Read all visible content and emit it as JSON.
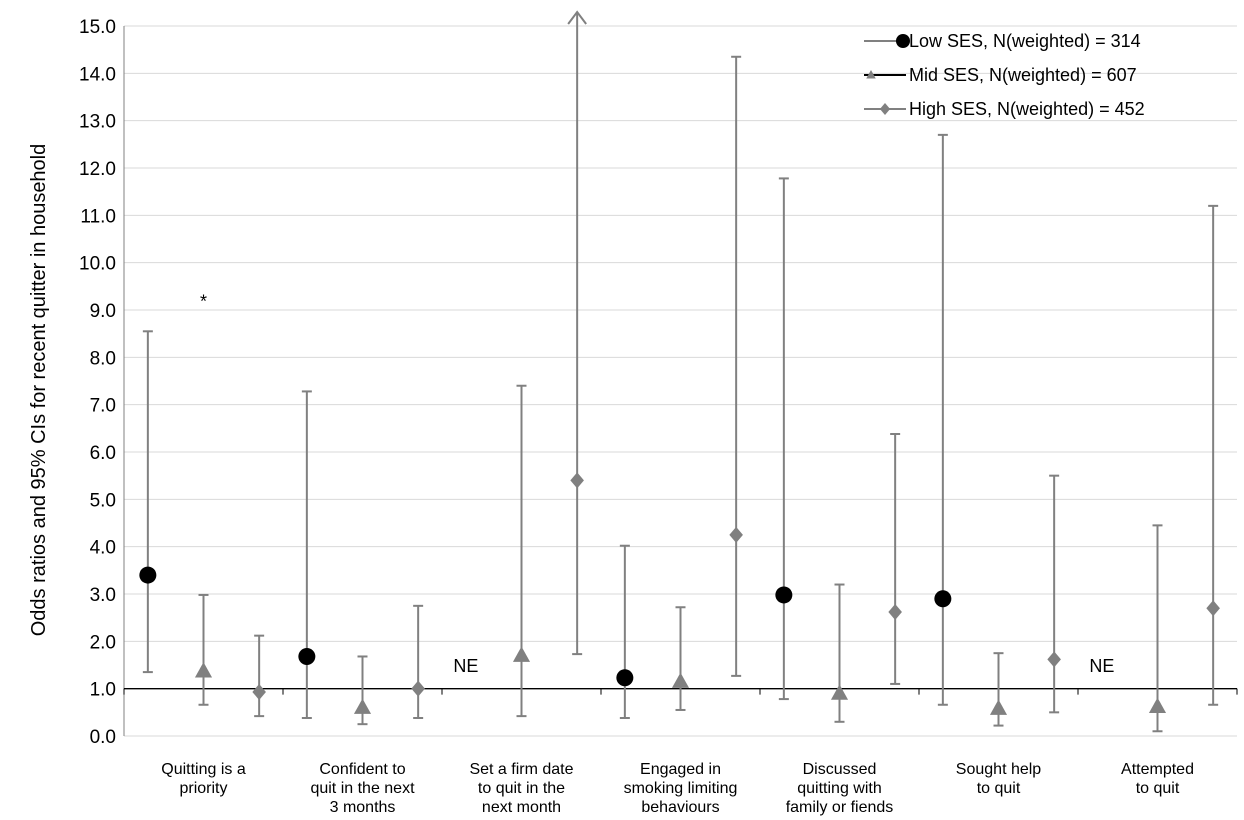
{
  "chart_data": {
    "type": "scatter",
    "ylabel": "Odds ratios and 95% CIs for recent quitter in household",
    "ylim": [
      0,
      15
    ],
    "yticks": [
      "0.0",
      "1.0",
      "2.0",
      "3.0",
      "4.0",
      "5.0",
      "6.0",
      "7.0",
      "8.0",
      "9.0",
      "10.0",
      "11.0",
      "12.0",
      "13.0",
      "14.0",
      "15.0"
    ],
    "reference_line": 1.0,
    "grid": true,
    "legend_position": "top-right",
    "categories": [
      [
        "Quitting is a",
        "priority"
      ],
      [
        "Confident to",
        "quit in the next",
        "3 months"
      ],
      [
        "Set a firm date",
        "to quit in the",
        "next month"
      ],
      [
        "Engaged in",
        "smoking limiting",
        "behaviours"
      ],
      [
        "Discussed",
        "quitting with",
        "family or fiends"
      ],
      [
        "Sought help",
        "to quit"
      ],
      [
        "Attempted",
        "to quit"
      ]
    ],
    "series": [
      {
        "name": "Low SES, N(weighted) = 314",
        "marker": "circle",
        "color": "#000000",
        "points": [
          {
            "or": 3.4,
            "lo": 1.35,
            "hi": 8.55
          },
          {
            "or": 1.68,
            "lo": 0.38,
            "hi": 7.28
          },
          null,
          {
            "or": 1.23,
            "lo": 0.38,
            "hi": 4.02
          },
          {
            "or": 2.98,
            "lo": 0.78,
            "hi": 11.78
          },
          {
            "or": 2.9,
            "lo": 0.66,
            "hi": 12.7
          },
          null
        ]
      },
      {
        "name": "Mid SES, N(weighted) = 607",
        "marker": "triangle",
        "color": "#808080",
        "points": [
          {
            "or": 1.37,
            "lo": 0.66,
            "hi": 2.98
          },
          {
            "or": 0.6,
            "lo": 0.25,
            "hi": 1.68
          },
          {
            "or": 1.7,
            "lo": 0.42,
            "hi": 7.4
          },
          {
            "or": 1.15,
            "lo": 0.55,
            "hi": 2.72
          },
          {
            "or": 0.9,
            "lo": 0.3,
            "hi": 3.2
          },
          {
            "or": 0.58,
            "lo": 0.22,
            "hi": 1.75
          },
          {
            "or": 0.62,
            "lo": 0.1,
            "hi": 4.45
          }
        ]
      },
      {
        "name": "High SES, N(weighted) = 452",
        "marker": "diamond",
        "color": "#808080",
        "points": [
          {
            "or": 0.93,
            "lo": 0.42,
            "hi": 2.12
          },
          {
            "or": 1.0,
            "lo": 0.38,
            "hi": 2.75
          },
          {
            "or": 5.4,
            "lo": 1.73,
            "hi": 15.0,
            "arrow": true
          },
          {
            "or": 4.25,
            "lo": 1.27,
            "hi": 14.35
          },
          {
            "or": 2.62,
            "lo": 1.1,
            "hi": 6.38
          },
          {
            "or": 1.62,
            "lo": 0.5,
            "hi": 5.5
          },
          {
            "or": 2.7,
            "lo": 0.66,
            "hi": 11.2
          }
        ]
      }
    ],
    "annotations": [
      {
        "text": "*",
        "category": 0,
        "y": 9.2
      },
      {
        "text": "NE",
        "category": 2,
        "y": 1.5
      },
      {
        "text": "NE",
        "category": 6,
        "y": 1.5
      }
    ]
  }
}
